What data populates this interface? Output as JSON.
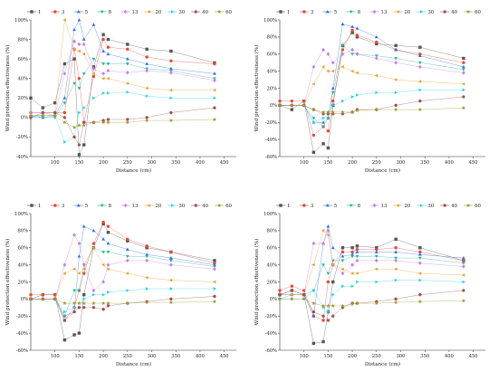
{
  "chart_data": [
    {
      "type": "line",
      "x": [
        50,
        75,
        100,
        120,
        140,
        150,
        160,
        180,
        200,
        210,
        250,
        290,
        340,
        430
      ],
      "xlabel": "Distance (cm)",
      "ylabel": "Wind protection effectiveness (%)",
      "xlim": [
        50,
        475
      ],
      "ylim": [
        -40,
        100
      ],
      "xticks": [
        "100",
        "150",
        "200",
        "250",
        "300",
        "350",
        "400",
        "450"
      ],
      "yticks": [
        "-40%",
        "-20%",
        "0%",
        "20%",
        "40%",
        "60%",
        "80%",
        "100%"
      ],
      "legend_position": "top",
      "series": [
        {
          "name": "1",
          "values": [
            20,
            10,
            15,
            55,
            60,
            -38,
            -28,
            52,
            85,
            80,
            75,
            70,
            68,
            56
          ]
        },
        {
          "name": "3",
          "values": [
            5,
            5,
            5,
            5,
            70,
            40,
            -5,
            42,
            80,
            72,
            70,
            62,
            58,
            55
          ]
        },
        {
          "name": "5",
          "values": [
            2,
            0,
            2,
            20,
            90,
            100,
            80,
            95,
            68,
            65,
            60,
            55,
            50,
            45
          ]
        },
        {
          "name": "8",
          "values": [
            0,
            0,
            0,
            15,
            35,
            30,
            45,
            60,
            55,
            55,
            55,
            50,
            48,
            40
          ]
        },
        {
          "name": "13",
          "values": [
            5,
            5,
            2,
            45,
            78,
            75,
            75,
            50,
            45,
            48,
            46,
            48,
            46,
            38
          ]
        },
        {
          "name": "20",
          "values": [
            2,
            2,
            2,
            100,
            70,
            68,
            65,
            45,
            40,
            40,
            35,
            30,
            28,
            28
          ]
        },
        {
          "name": "30",
          "values": [
            0,
            2,
            2,
            -25,
            -20,
            5,
            10,
            20,
            25,
            25,
            26,
            22,
            20,
            20
          ]
        },
        {
          "name": "40",
          "values": [
            0,
            5,
            5,
            0,
            -20,
            -28,
            -5,
            -5,
            -3,
            -2,
            -2,
            0,
            5,
            10
          ]
        },
        {
          "name": "60",
          "values": [
            2,
            2,
            2,
            -5,
            -10,
            -8,
            -8,
            -5,
            -5,
            -5,
            -5,
            -3,
            -3,
            -2
          ]
        }
      ]
    },
    {
      "type": "line",
      "x": [
        50,
        75,
        100,
        120,
        140,
        150,
        160,
        180,
        200,
        210,
        250,
        290,
        340,
        430
      ],
      "xlabel": "Distance (cm)",
      "ylabel": "Wind protection effectiveness (%)",
      "xlim": [
        50,
        475
      ],
      "ylim": [
        -60,
        100
      ],
      "xticks": [
        "100",
        "150",
        "200",
        "250",
        "300",
        "350",
        "400",
        "450"
      ],
      "yticks": [
        "-60%",
        "-40%",
        "-20%",
        "0%",
        "20%",
        "40%",
        "60%",
        "80%",
        "100%"
      ],
      "legend_position": "top",
      "series": [
        {
          "name": "1",
          "values": [
            0,
            -5,
            5,
            -55,
            -45,
            -50,
            0,
            70,
            85,
            80,
            72,
            70,
            68,
            55
          ]
        },
        {
          "name": "3",
          "values": [
            5,
            5,
            5,
            -35,
            -25,
            -30,
            5,
            65,
            88,
            82,
            74,
            65,
            60,
            50
          ]
        },
        {
          "name": "5",
          "values": [
            0,
            0,
            0,
            -20,
            -20,
            -15,
            20,
            95,
            92,
            90,
            80,
            65,
            58,
            45
          ]
        },
        {
          "name": "8",
          "values": [
            0,
            0,
            0,
            -15,
            -25,
            -15,
            15,
            70,
            60,
            60,
            58,
            55,
            50,
            42
          ]
        },
        {
          "name": "13",
          "values": [
            0,
            0,
            0,
            45,
            65,
            60,
            50,
            60,
            65,
            60,
            55,
            50,
            45,
            38
          ]
        },
        {
          "name": "20",
          "values": [
            0,
            0,
            0,
            25,
            45,
            40,
            40,
            45,
            40,
            38,
            35,
            30,
            28,
            25
          ]
        },
        {
          "name": "30",
          "values": [
            0,
            0,
            0,
            -20,
            -15,
            -10,
            0,
            5,
            10,
            12,
            15,
            15,
            18,
            18
          ]
        },
        {
          "name": "40",
          "values": [
            0,
            0,
            0,
            -5,
            -10,
            -10,
            -10,
            -10,
            -8,
            -5,
            -5,
            0,
            5,
            10
          ]
        },
        {
          "name": "60",
          "values": [
            0,
            0,
            0,
            -5,
            -8,
            -8,
            -8,
            -8,
            -8,
            -6,
            -5,
            -5,
            -5,
            -3
          ]
        }
      ]
    },
    {
      "type": "line",
      "x": [
        50,
        75,
        100,
        120,
        140,
        150,
        160,
        180,
        200,
        210,
        250,
        290,
        340,
        430
      ],
      "xlabel": "Distance (cm)",
      "ylabel": "Wind protection effectiveness (%)",
      "xlim": [
        50,
        475
      ],
      "ylim": [
        -60,
        100
      ],
      "xticks": [
        "100",
        "150",
        "200",
        "250",
        "300",
        "350",
        "400",
        "450"
      ],
      "yticks": [
        "-60%",
        "-40%",
        "-20%",
        "0%",
        "20%",
        "40%",
        "60%",
        "80%",
        "100%"
      ],
      "legend_position": "top",
      "series": [
        {
          "name": "1",
          "values": [
            0,
            5,
            5,
            -48,
            -42,
            -40,
            5,
            60,
            88,
            78,
            68,
            60,
            55,
            45
          ]
        },
        {
          "name": "3",
          "values": [
            5,
            5,
            5,
            -25,
            -10,
            10,
            30,
            65,
            90,
            85,
            70,
            62,
            55,
            42
          ]
        },
        {
          "name": "5",
          "values": [
            0,
            0,
            0,
            -20,
            -15,
            50,
            85,
            80,
            70,
            65,
            58,
            52,
            48,
            40
          ]
        },
        {
          "name": "8",
          "values": [
            0,
            0,
            0,
            -20,
            10,
            10,
            40,
            60,
            55,
            55,
            50,
            50,
            45,
            38
          ]
        },
        {
          "name": "13",
          "values": [
            0,
            0,
            0,
            40,
            75,
            65,
            40,
            10,
            20,
            40,
            45,
            45,
            40,
            35
          ]
        },
        {
          "name": "20",
          "values": [
            0,
            0,
            0,
            30,
            35,
            30,
            35,
            60,
            40,
            35,
            30,
            25,
            22,
            20
          ]
        },
        {
          "name": "30",
          "values": [
            0,
            0,
            0,
            -15,
            -10,
            -10,
            0,
            5,
            5,
            8,
            10,
            12,
            12,
            12
          ]
        },
        {
          "name": "40",
          "values": [
            0,
            0,
            0,
            -25,
            -15,
            -10,
            -10,
            -10,
            -12,
            -8,
            -5,
            -3,
            0,
            3
          ]
        },
        {
          "name": "60",
          "values": [
            0,
            0,
            0,
            -5,
            -5,
            -5,
            -5,
            -5,
            -5,
            -5,
            -5,
            -4,
            -4,
            -3
          ]
        }
      ]
    },
    {
      "type": "line",
      "x": [
        50,
        75,
        100,
        120,
        140,
        150,
        160,
        180,
        200,
        210,
        250,
        290,
        340,
        430
      ],
      "xlabel": "Distance (cm)",
      "ylabel": "Wind protection effectiveness (%)",
      "xlim": [
        50,
        475
      ],
      "ylim": [
        -60,
        100
      ],
      "xticks": [
        "100",
        "150",
        "200",
        "250",
        "300",
        "350",
        "400",
        "450"
      ],
      "yticks": [
        "-60%",
        "-40%",
        "-20%",
        "0%",
        "20%",
        "40%",
        "60%",
        "80%",
        "100%"
      ],
      "legend_position": "top",
      "series": [
        {
          "name": "1",
          "values": [
            5,
            10,
            5,
            -52,
            -50,
            -15,
            20,
            60,
            60,
            62,
            60,
            70,
            60,
            45
          ]
        },
        {
          "name": "3",
          "values": [
            10,
            15,
            10,
            -20,
            -25,
            20,
            40,
            55,
            55,
            58,
            58,
            60,
            55,
            45
          ]
        },
        {
          "name": "5",
          "values": [
            5,
            5,
            5,
            -20,
            65,
            85,
            60,
            50,
            52,
            55,
            55,
            55,
            52,
            48
          ]
        },
        {
          "name": "8",
          "values": [
            0,
            5,
            5,
            10,
            40,
            30,
            45,
            45,
            50,
            50,
            50,
            48,
            48,
            42
          ]
        },
        {
          "name": "13",
          "values": [
            5,
            5,
            5,
            65,
            65,
            80,
            40,
            30,
            40,
            45,
            45,
            45,
            42,
            38
          ]
        },
        {
          "name": "20",
          "values": [
            5,
            5,
            5,
            40,
            80,
            75,
            40,
            35,
            30,
            30,
            35,
            35,
            30,
            28
          ]
        },
        {
          "name": "30",
          "values": [
            0,
            0,
            0,
            10,
            -10,
            -15,
            5,
            15,
            15,
            20,
            20,
            22,
            22,
            20
          ]
        },
        {
          "name": "40",
          "values": [
            5,
            10,
            5,
            -15,
            -20,
            -25,
            -20,
            -10,
            -5,
            -5,
            -3,
            0,
            5,
            10
          ]
        },
        {
          "name": "60",
          "values": [
            0,
            0,
            0,
            -5,
            -8,
            -8,
            -8,
            -8,
            -6,
            -5,
            -5,
            -4,
            -3,
            -2
          ]
        }
      ]
    }
  ],
  "colors": [
    "#555555",
    "#e8483c",
    "#2d6ee8",
    "#2ab39a",
    "#c77ee8",
    "#e8a030",
    "#2fd0e8",
    "#a05050",
    "#a09a30"
  ],
  "markers": [
    "square",
    "circle",
    "triangle-up",
    "triangle-down",
    "diamond",
    "triangle-left",
    "triangle-right",
    "hexagon",
    "star"
  ]
}
